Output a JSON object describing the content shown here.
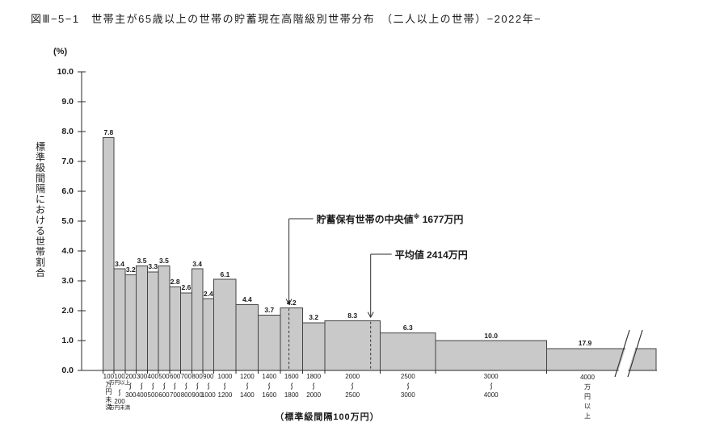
{
  "figure": {
    "title": "図Ⅲ−5−1　世帯主が65歳以上の世帯の貯蓄現在高階級別世帯分布　（二人以上の世帯）−2022年−"
  },
  "chart_data": {
    "type": "bar",
    "subtype": "histogram-density",
    "title": "世帯主が65歳以上の世帯の貯蓄現在高階級別世帯分布（二人以上の世帯）2022年",
    "unit_label": "(%)",
    "ylabel": "標準級間隔における世帯割合",
    "xlabel": "（標準級間隔100万円）",
    "x_unit": "万円",
    "ylim": [
      0.0,
      10.0
    ],
    "y_tick_step": 1.0,
    "grid": false,
    "bars": [
      {
        "min": 0,
        "max": 100,
        "percent": 7.8,
        "style": "vertical",
        "tick_lines": [
          "100",
          "万",
          "円",
          "未",
          "満"
        ]
      },
      {
        "min": 100,
        "max": 200,
        "percent": 3.4,
        "style": "range-wide",
        "tick_lines": [
          "100",
          "万円以上",
          "〜",
          "200",
          "万円未満"
        ]
      },
      {
        "min": 200,
        "max": 300,
        "percent": 3.2,
        "style": "range"
      },
      {
        "min": 300,
        "max": 400,
        "percent": 3.5,
        "style": "range"
      },
      {
        "min": 400,
        "max": 500,
        "percent": 3.3,
        "style": "range"
      },
      {
        "min": 500,
        "max": 600,
        "percent": 3.5,
        "style": "range"
      },
      {
        "min": 600,
        "max": 700,
        "percent": 2.8,
        "style": "range"
      },
      {
        "min": 700,
        "max": 800,
        "percent": 2.6,
        "style": "range"
      },
      {
        "min": 800,
        "max": 900,
        "percent": 3.4,
        "style": "range"
      },
      {
        "min": 900,
        "max": 1000,
        "percent": 2.4,
        "style": "range"
      },
      {
        "min": 1000,
        "max": 1200,
        "percent": 6.1,
        "style": "range"
      },
      {
        "min": 1200,
        "max": 1400,
        "percent": 4.4,
        "style": "range"
      },
      {
        "min": 1400,
        "max": 1600,
        "percent": 3.7,
        "style": "range"
      },
      {
        "min": 1600,
        "max": 1800,
        "percent": 4.2,
        "style": "range"
      },
      {
        "min": 1800,
        "max": 2000,
        "percent": 3.2,
        "style": "range"
      },
      {
        "min": 2000,
        "max": 2500,
        "percent": 8.3,
        "style": "range"
      },
      {
        "min": 2500,
        "max": 3000,
        "percent": 6.3,
        "style": "range"
      },
      {
        "min": 3000,
        "max": 4000,
        "percent": 10.0,
        "style": "range"
      },
      {
        "min": 4000,
        "max": null,
        "percent": 17.9,
        "style": "vertical-last",
        "open_ended": true,
        "plot_density": 0.73,
        "tick_lines": [
          "4000",
          "万",
          "円",
          "以",
          "上"
        ]
      }
    ],
    "annotations": [
      {
        "id": "median",
        "label_main": "貯蓄保有世帯の中央値",
        "label_sup": "※",
        "label_value": "1677万円",
        "value": 1677
      },
      {
        "id": "mean",
        "label_main": "平均値",
        "label_sup": "",
        "label_value": "2414万円",
        "value": 2414
      }
    ],
    "colors": {
      "bar_fill": "#c9c9c9",
      "bar_stroke": "#444444",
      "axis": "#2b2b2b",
      "text": "#1a1a1a",
      "background": "#ffffff"
    }
  }
}
